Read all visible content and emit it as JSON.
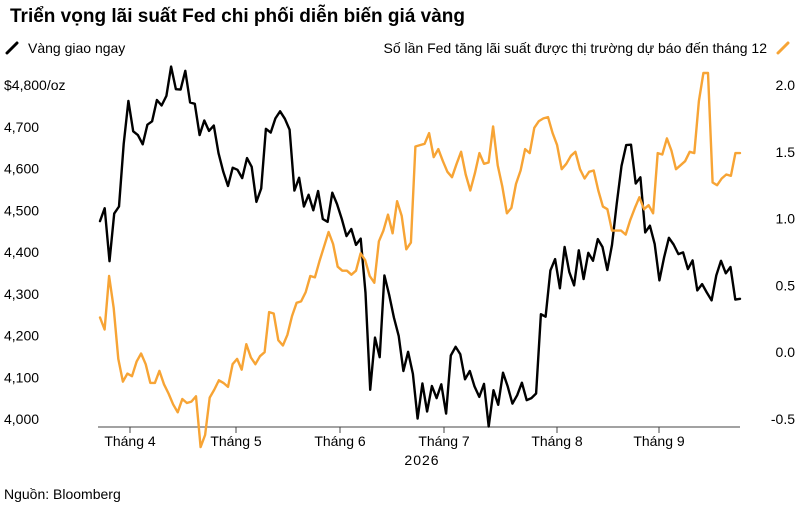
{
  "title": "Triển vọng lãi suất Fed chi phối diễn biến giá vàng",
  "legend": {
    "left_label": "Vàng giao ngay",
    "right_label": "Số lần Fed tăng lãi suất được thị trường dự báo đến tháng 12"
  },
  "source": "Nguồn: Bloomberg",
  "colors": {
    "gold": "#000000",
    "hikes": "#F7A435"
  },
  "chart_data": {
    "type": "line",
    "x_labels": [
      "Tháng 4",
      "Tháng 5",
      "Tháng 6",
      "Tháng 7",
      "Tháng 8",
      "Tháng 9"
    ],
    "year_label": "2026",
    "y_left": {
      "ticks": [
        "$4,800/oz",
        "4,700",
        "4,600",
        "4,500",
        "4,400",
        "4,300",
        "4,200",
        "4,100",
        "4,000"
      ],
      "range": [
        4000,
        4800
      ]
    },
    "y_right": {
      "ticks": [
        "2.0",
        "1.5",
        "1.0",
        "0.5",
        "0.0",
        "-0.5"
      ],
      "range": [
        -0.5,
        2.0
      ]
    },
    "grid": false,
    "series": [
      {
        "name": "Vàng giao ngay",
        "axis": "left",
        "color": "#000000",
        "values": [
          4474,
          4505,
          4378,
          4492,
          4509,
          4659,
          4762,
          4689,
          4680,
          4658,
          4705,
          4713,
          4764,
          4751,
          4774,
          4844,
          4790,
          4789,
          4834,
          4758,
          4755,
          4680,
          4715,
          4690,
          4703,
          4637,
          4592,
          4558,
          4602,
          4597,
          4577,
          4625,
          4604,
          4520,
          4552,
          4695,
          4686,
          4720,
          4737,
          4719,
          4693,
          4547,
          4578,
          4509,
          4537,
          4500,
          4546,
          4479,
          4472,
          4542,
          4515,
          4479,
          4438,
          4455,
          4417,
          4432,
          4302,
          4070,
          4195,
          4148,
          4344,
          4297,
          4243,
          4199,
          4115,
          4161,
          4108,
          4001,
          4085,
          4018,
          4079,
          4050,
          4083,
          4013,
          4152,
          4173,
          4155,
          4095,
          4115,
          4078,
          4053,
          4084,
          3982,
          4069,
          4034,
          4111,
          4078,
          4037,
          4057,
          4087,
          4045,
          4050,
          4061,
          4251,
          4245,
          4356,
          4383,
          4313,
          4412,
          4352,
          4320,
          4404,
          4335,
          4398,
          4379,
          4431,
          4412,
          4357,
          4417,
          4515,
          4606,
          4656,
          4657,
          4564,
          4579,
          4447,
          4463,
          4419,
          4332,
          4387,
          4434,
          4418,
          4395,
          4399,
          4359,
          4380,
          4308,
          4323,
          4303,
          4284,
          4344,
          4379,
          4349,
          4364,
          4286,
          4288
        ]
      },
      {
        "name": "Số lần Fed tăng lãi suất được thị trường dự báo đến tháng 12",
        "axis": "right",
        "color": "#F7A435",
        "values": [
          0.26,
          0.17,
          0.57,
          0.33,
          -0.05,
          -0.22,
          -0.16,
          -0.18,
          -0.07,
          -0.01,
          -0.09,
          -0.23,
          -0.23,
          -0.14,
          -0.24,
          -0.31,
          -0.39,
          -0.45,
          -0.35,
          -0.38,
          -0.37,
          -0.33,
          -0.71,
          -0.62,
          -0.34,
          -0.28,
          -0.21,
          -0.23,
          -0.26,
          -0.09,
          -0.05,
          -0.13,
          0.06,
          -0.04,
          -0.09,
          -0.03,
          0.0,
          0.3,
          0.29,
          0.09,
          0.05,
          0.13,
          0.27,
          0.37,
          0.38,
          0.45,
          0.57,
          0.56,
          0.68,
          0.79,
          0.9,
          0.81,
          0.64,
          0.61,
          0.61,
          0.58,
          0.61,
          0.74,
          0.69,
          0.57,
          0.52,
          0.83,
          0.91,
          1.03,
          0.89,
          1.13,
          1.02,
          0.77,
          0.82,
          1.54,
          1.55,
          1.56,
          1.64,
          1.46,
          1.52,
          1.43,
          1.35,
          1.31,
          1.41,
          1.5,
          1.33,
          1.21,
          1.34,
          1.49,
          1.41,
          1.42,
          1.69,
          1.4,
          1.24,
          1.04,
          1.08,
          1.26,
          1.36,
          1.52,
          1.49,
          1.68,
          1.73,
          1.75,
          1.76,
          1.64,
          1.55,
          1.37,
          1.41,
          1.47,
          1.5,
          1.37,
          1.3,
          1.35,
          1.36,
          1.21,
          1.09,
          1.07,
          0.91,
          0.91,
          0.91,
          0.88,
          0.99,
          1.08,
          1.16,
          1.07,
          1.1,
          1.04,
          1.49,
          1.48,
          1.6,
          1.51,
          1.37,
          1.4,
          1.43,
          1.5,
          1.49,
          1.88,
          2.09,
          2.09,
          1.27,
          1.25,
          1.3,
          1.33,
          1.32,
          1.49,
          1.49
        ]
      }
    ]
  }
}
